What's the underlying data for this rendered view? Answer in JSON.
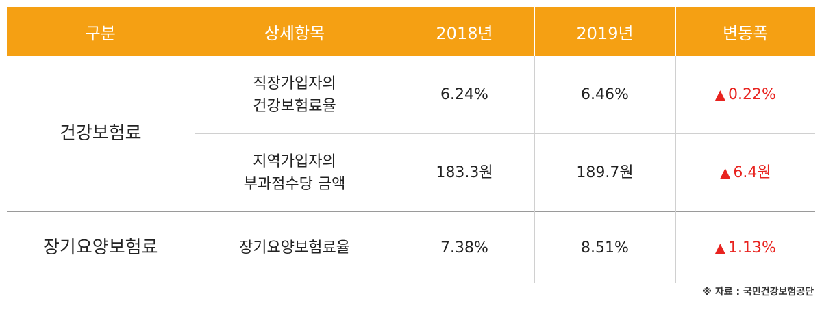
{
  "headers": [
    "구분",
    "상세항목",
    "2018년",
    "2019년",
    "변동폭"
  ],
  "rows": [
    {
      "category": "건강보험료",
      "item_line1": "직장가입자의",
      "item_line2": "건강보험료율",
      "y2018": "6.24%",
      "y2019": "6.46%",
      "change": "0.22%"
    },
    {
      "item_line1": "지역가입자의",
      "item_line2": "부과점수당 금액",
      "y2018": "183.3원",
      "y2019": "189.7원",
      "change": "6.4원"
    },
    {
      "category": "장기요양보험료",
      "item_line1": "장기요양보험료율",
      "y2018": "7.38%",
      "y2019": "8.51%",
      "change": "1.13%"
    }
  ],
  "up_symbol": "▲",
  "source": "※ 자료 : 국민건강보험공단",
  "colors": {
    "header_bg": "#f5a013",
    "header_text": "#ffffff",
    "increase": "#e8231f"
  }
}
